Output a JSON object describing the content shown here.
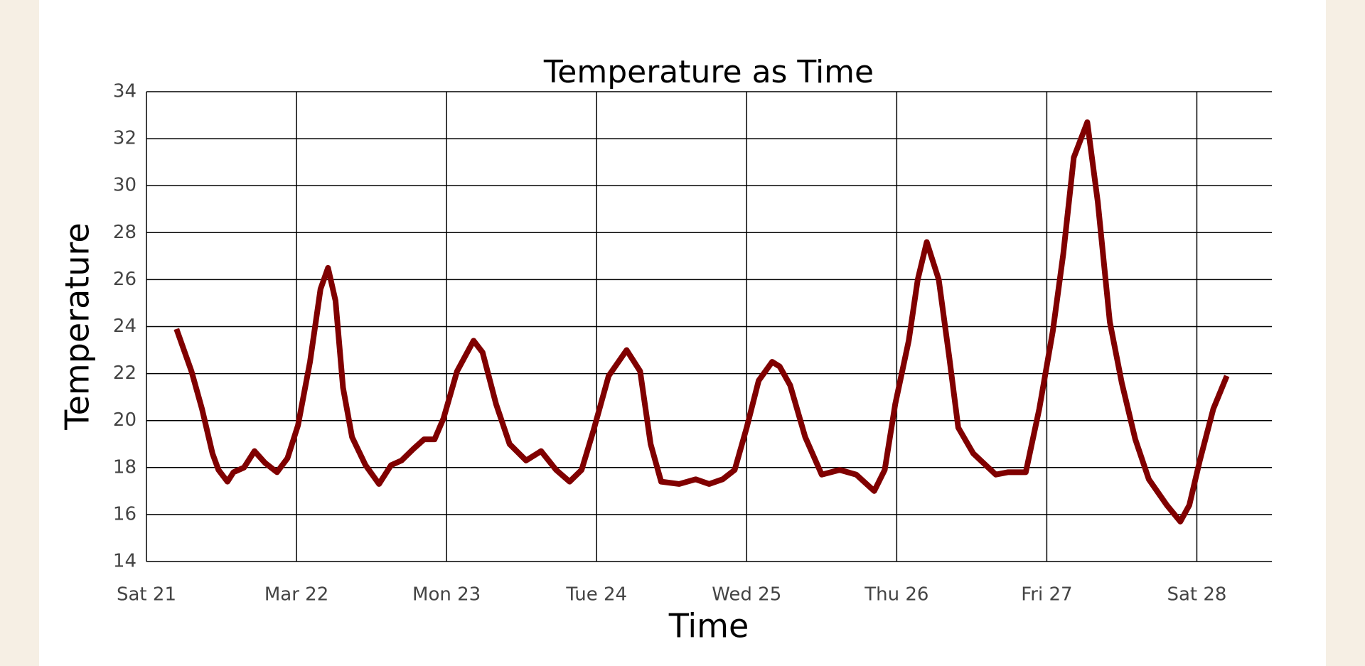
{
  "chart_data": {
    "type": "line",
    "title": "Temperature as Time",
    "x_label": "Time",
    "y_label": "Temperature",
    "x": [
      21.2,
      21.3,
      21.37,
      21.44,
      21.48,
      21.54,
      21.58,
      21.65,
      21.72,
      21.79,
      21.87,
      21.94,
      22.01,
      22.09,
      22.16,
      22.21,
      22.26,
      22.31,
      22.37,
      22.46,
      22.55,
      22.63,
      22.7,
      22.78,
      22.85,
      22.92,
      22.98,
      23.07,
      23.18,
      23.24,
      23.33,
      23.42,
      23.53,
      23.63,
      23.73,
      23.82,
      23.9,
      23.98,
      24.08,
      24.2,
      24.29,
      24.36,
      24.43,
      24.55,
      24.66,
      24.75,
      24.84,
      24.92,
      25.0,
      25.08,
      25.17,
      25.22,
      25.29,
      25.39,
      25.5,
      25.62,
      25.73,
      25.85,
      25.92,
      25.99,
      26.08,
      26.14,
      26.2,
      26.28,
      26.35,
      26.41,
      26.51,
      26.66,
      26.74,
      26.86,
      26.95,
      27.04,
      27.11,
      27.18,
      27.27,
      27.34,
      27.42,
      27.5,
      27.59,
      27.68,
      27.8,
      27.89,
      27.95,
      28.02,
      28.11,
      28.2
    ],
    "series": [
      {
        "name": "Temperature",
        "color": "#800000",
        "values": [
          23.9,
          22.1,
          20.5,
          18.6,
          17.9,
          17.4,
          17.8,
          18.0,
          18.7,
          18.2,
          17.8,
          18.4,
          19.8,
          22.5,
          25.6,
          26.5,
          25.1,
          21.4,
          19.3,
          18.1,
          17.3,
          18.1,
          18.3,
          18.8,
          19.2,
          19.2,
          20.1,
          22.1,
          23.4,
          22.9,
          20.7,
          19.0,
          18.3,
          18.7,
          17.9,
          17.4,
          17.9,
          19.6,
          21.9,
          23.0,
          22.1,
          19.0,
          17.4,
          17.3,
          17.5,
          17.3,
          17.5,
          17.9,
          19.7,
          21.7,
          22.5,
          22.3,
          21.5,
          19.3,
          17.7,
          17.9,
          17.7,
          17.0,
          17.9,
          20.7,
          23.4,
          26.0,
          27.6,
          26.0,
          22.7,
          19.7,
          18.6,
          17.7,
          17.8,
          17.8,
          20.5,
          23.8,
          27.1,
          31.2,
          32.7,
          29.3,
          24.2,
          21.6,
          19.2,
          17.5,
          16.4,
          15.7,
          16.4,
          18.3,
          20.5,
          21.9
        ]
      }
    ],
    "xlim": [
      21,
      28.5
    ],
    "xticks": [
      {
        "value": 21,
        "label": "Sat 21"
      },
      {
        "value": 22,
        "label": "Mar 22"
      },
      {
        "value": 23,
        "label": "Mon 23"
      },
      {
        "value": 24,
        "label": "Tue 24"
      },
      {
        "value": 25,
        "label": "Wed 25"
      },
      {
        "value": 26,
        "label": "Thu 26"
      },
      {
        "value": 27,
        "label": "Fri 27"
      },
      {
        "value": 28,
        "label": "Sat 28"
      }
    ],
    "ylim": [
      14,
      34
    ],
    "yticks": [
      14,
      16,
      18,
      20,
      22,
      24,
      26,
      28,
      30,
      32,
      34
    ],
    "grid": true
  }
}
